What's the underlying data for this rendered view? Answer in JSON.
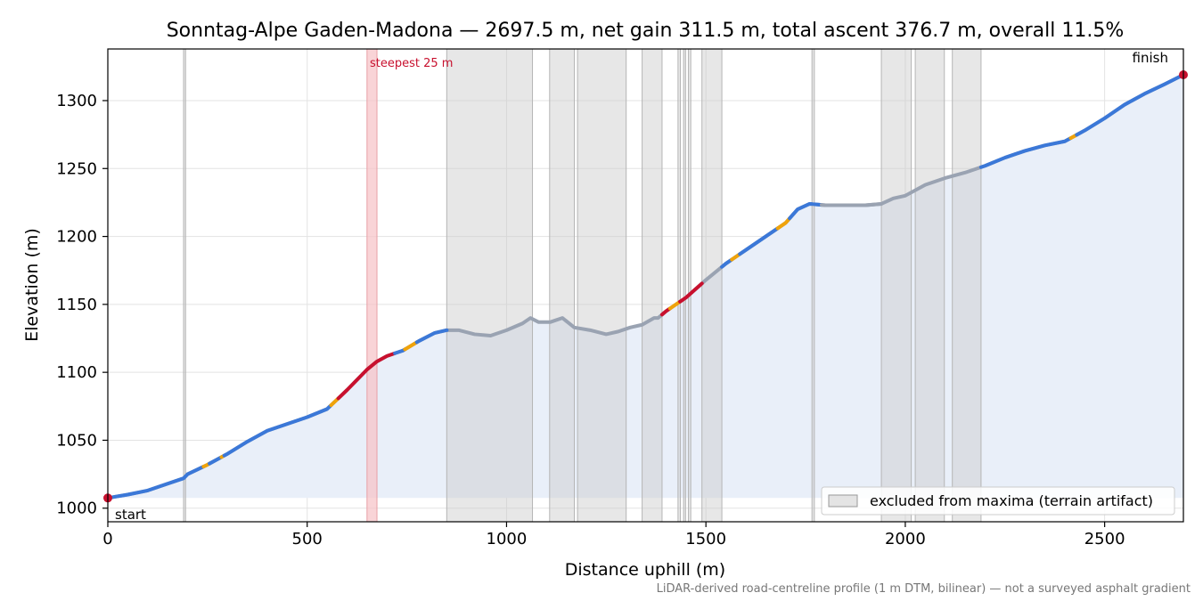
{
  "chart_data": {
    "type": "line",
    "title": "Sonntag-Alpe Gaden-Madona — 2697.5 m, net gain 311.5 m, total ascent 376.7 m, overall 11.5%",
    "xlabel": "Distance uphill (m)",
    "ylabel": "Elevation (m)",
    "footnote": "LiDAR-derived road-centreline profile (1 m DTM, bilinear) — not a surveyed asphalt gradient",
    "xlim": [
      0,
      2697.5
    ],
    "ylim": [
      990,
      1338
    ],
    "xticks": [
      0,
      500,
      1000,
      1500,
      2000,
      2500
    ],
    "yticks": [
      1000,
      1050,
      1100,
      1150,
      1200,
      1250,
      1300
    ],
    "grid": true,
    "legend": {
      "placement": "lower-right",
      "entries": [
        "excluded from maxima (terrain artifact)"
      ]
    },
    "annotations": {
      "start": "start",
      "finish": "finish",
      "steepest": "steepest 25 m"
    },
    "steepest_window": [
      650,
      675
    ],
    "excluded_ranges": [
      [
        190,
        195
      ],
      [
        850,
        1065
      ],
      [
        1108,
        1170
      ],
      [
        1178,
        1300
      ],
      [
        1340,
        1390
      ],
      [
        1430,
        1436
      ],
      [
        1444,
        1449
      ],
      [
        1456,
        1462
      ],
      [
        1490,
        1540
      ],
      [
        1766,
        1772
      ],
      [
        1940,
        2015
      ],
      [
        2025,
        2098
      ],
      [
        2118,
        2190
      ]
    ],
    "profile": {
      "x": [
        0,
        50,
        100,
        150,
        190,
        200,
        250,
        300,
        350,
        400,
        450,
        500,
        550,
        600,
        650,
        675,
        700,
        740,
        780,
        820,
        850,
        880,
        920,
        960,
        1000,
        1040,
        1060,
        1080,
        1110,
        1140,
        1170,
        1210,
        1250,
        1280,
        1310,
        1340,
        1370,
        1380,
        1400,
        1450,
        1500,
        1550,
        1600,
        1650,
        1700,
        1730,
        1760,
        1800,
        1850,
        1900,
        1940,
        1970,
        2000,
        2050,
        2100,
        2150,
        2200,
        2250,
        2300,
        2350,
        2400,
        2450,
        2500,
        2550,
        2600,
        2650,
        2697.5
      ],
      "y": [
        1007.5,
        1010,
        1013,
        1018,
        1022,
        1025,
        1032,
        1040,
        1049,
        1057,
        1062,
        1067,
        1073,
        1087,
        1102,
        1108,
        1112,
        1116,
        1123,
        1129,
        1131,
        1131,
        1128,
        1127,
        1131,
        1136,
        1140,
        1137,
        1137,
        1140,
        1133,
        1131,
        1128,
        1130,
        1133,
        1135,
        1140,
        1140,
        1145,
        1155,
        1168,
        1180,
        1190,
        1200,
        1210,
        1220,
        1224,
        1223,
        1223,
        1223,
        1224,
        1228,
        1230,
        1238,
        1243,
        1247,
        1252,
        1258,
        1263,
        1267,
        1270,
        1278,
        1287,
        1297,
        1305,
        1312,
        1319
      ]
    },
    "gradient_classes": [
      {
        "name": "gentle",
        "color": "#3b78d8"
      },
      {
        "name": "moderate",
        "color": "#f0a30a"
      },
      {
        "name": "steep",
        "color": "#c8102e"
      },
      {
        "name": "excluded",
        "color": "#9aa3b2"
      }
    ],
    "segments": [
      [
        0,
        240,
        "gentle"
      ],
      [
        240,
        255,
        "moderate"
      ],
      [
        255,
        285,
        "gentle"
      ],
      [
        285,
        292,
        "moderate"
      ],
      [
        292,
        560,
        "gentle"
      ],
      [
        560,
        578,
        "moderate"
      ],
      [
        578,
        720,
        "steep"
      ],
      [
        720,
        745,
        "gentle"
      ],
      [
        745,
        775,
        "moderate"
      ],
      [
        775,
        850,
        "gentle"
      ],
      [
        1390,
        1410,
        "steep"
      ],
      [
        1410,
        1435,
        "moderate"
      ],
      [
        1435,
        1490,
        "steep"
      ],
      [
        1540,
        1565,
        "gentle"
      ],
      [
        1565,
        1585,
        "moderate"
      ],
      [
        1585,
        1680,
        "gentle"
      ],
      [
        1680,
        1710,
        "moderate"
      ],
      [
        1710,
        1766,
        "gentle"
      ],
      [
        1772,
        1790,
        "gentle"
      ],
      [
        1790,
        1940,
        "excluded"
      ],
      [
        2190,
        2415,
        "gentle"
      ],
      [
        2415,
        2430,
        "moderate"
      ],
      [
        2430,
        2697.5,
        "gentle"
      ]
    ],
    "colors": {
      "fill": "#e9eff9",
      "excluded_band": "#c9c9c9",
      "steepest_band": "#f6c2c6",
      "steepest_text": "#c8102e",
      "endpoint": "#c8102e",
      "footnote": "#777777"
    }
  }
}
